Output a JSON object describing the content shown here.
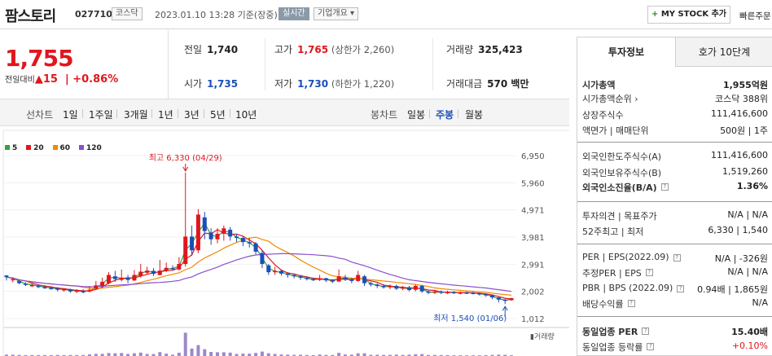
{
  "header": {
    "name": "팜스토리",
    "code": "027710",
    "market": "코스닥",
    "datetime": "2023.01.10 13:28 기준(장중)",
    "live": "실시간",
    "info": "기업개요",
    "info_arrow": "▾",
    "mystock": "MY STOCK 추가",
    "mystock_plus": "+",
    "quick": "빠른주문"
  },
  "price": {
    "current": "1,755",
    "change_label": "전일대비",
    "change_arrow": "▲",
    "change": "15",
    "change_pct": "+0.86%"
  },
  "stats": {
    "prev_label": "전일",
    "prev": "1,740",
    "high_label": "고가",
    "high": "1,765",
    "high_sub": "(상한가 2,260)",
    "volume_label": "거래량",
    "volume": "325,423",
    "open_label": "시가",
    "open": "1,735",
    "low_label": "저가",
    "low": "1,730",
    "low_sub": "(하한가 1,220)",
    "amount_label": "거래대금",
    "amount": "570 백만"
  },
  "selbar": {
    "line_label": "선차트",
    "line_items": [
      "1일",
      "1주일",
      "3개월",
      "1년",
      "3년",
      "5년",
      "10년"
    ],
    "candle_label": "봉차트",
    "candle_items": [
      "일봉",
      "주봉",
      "월봉"
    ],
    "candle_active": "주봉"
  },
  "chart_data": {
    "type": "line",
    "legend": [
      {
        "name": "5",
        "color": "#3aa03a"
      },
      {
        "name": "20",
        "color": "#e0161e"
      },
      {
        "name": "60",
        "color": "#f08a00"
      },
      {
        "name": "120",
        "color": "#8a4fd0"
      }
    ],
    "y_ticks": [
      "6,950",
      "5,960",
      "4,971",
      "3,981",
      "2,991",
      "2,002",
      "1,012"
    ],
    "ylim": [
      1012,
      6950
    ],
    "high_note": "최고 6,330 (04/29)",
    "low_note": "최저 1,540 (01/06)",
    "volume_label": "거래량",
    "up_color": "#e0161e",
    "down_color": "#1a4fb8",
    "candles": [
      [
        2580,
        2520,
        2600,
        2400
      ],
      [
        2420,
        2450,
        2520,
        2330
      ],
      [
        2380,
        2300,
        2420,
        2260
      ],
      [
        2280,
        2250,
        2330,
        2200
      ],
      [
        2220,
        2230,
        2300,
        2160
      ],
      [
        2200,
        2170,
        2260,
        2120
      ],
      [
        2160,
        2140,
        2230,
        2090
      ],
      [
        2130,
        2120,
        2190,
        2060
      ],
      [
        2120,
        2060,
        2160,
        2000
      ],
      [
        2040,
        2080,
        2120,
        1990
      ],
      [
        2060,
        2000,
        2100,
        1950
      ],
      [
        1990,
        2030,
        2080,
        1940
      ],
      [
        2010,
        1980,
        2080,
        1930
      ],
      [
        2000,
        2060,
        2200,
        1960
      ],
      [
        2100,
        2220,
        2380,
        2060
      ],
      [
        2200,
        2350,
        2500,
        2180
      ],
      [
        2300,
        2600,
        2700,
        2260
      ],
      [
        2550,
        2450,
        2750,
        2350
      ],
      [
        2420,
        2500,
        2800,
        2360
      ],
      [
        2500,
        2420,
        2600,
        2300
      ],
      [
        2400,
        2600,
        2780,
        2380
      ],
      [
        2560,
        2720,
        3000,
        2500
      ],
      [
        2680,
        2760,
        2900,
        2600
      ],
      [
        2750,
        2640,
        2850,
        2560
      ],
      [
        2600,
        2760,
        3150,
        2580
      ],
      [
        2760,
        2860,
        3050,
        2700
      ],
      [
        2850,
        2820,
        2950,
        2760
      ],
      [
        2800,
        3000,
        3250,
        2760
      ],
      [
        3000,
        4000,
        6330,
        2900
      ],
      [
        4000,
        3500,
        4400,
        3300
      ],
      [
        3500,
        4800,
        5000,
        3400
      ],
      [
        4700,
        4200,
        4900,
        3900
      ],
      [
        4150,
        3900,
        4300,
        3700
      ],
      [
        3900,
        4100,
        4300,
        3750
      ],
      [
        4100,
        4300,
        4400,
        3850
      ],
      [
        4250,
        4000,
        4350,
        3850
      ],
      [
        4000,
        3950,
        4100,
        3800
      ],
      [
        3950,
        3800,
        4000,
        3650
      ],
      [
        3800,
        3750,
        3950,
        3600
      ],
      [
        3750,
        3450,
        3800,
        3350
      ],
      [
        3400,
        3000,
        3500,
        2850
      ],
      [
        2950,
        2700,
        3000,
        2600
      ],
      [
        2700,
        2750,
        2900,
        2600
      ],
      [
        2750,
        2650,
        2800,
        2580
      ],
      [
        2650,
        2600,
        2700,
        2500
      ],
      [
        2600,
        2550,
        2650,
        2480
      ],
      [
        2550,
        2500,
        2600,
        2420
      ],
      [
        2500,
        2450,
        2550,
        2400
      ],
      [
        2450,
        2420,
        2500,
        2380
      ],
      [
        2420,
        2480,
        2600,
        2380
      ],
      [
        2480,
        2400,
        2500,
        2340
      ],
      [
        2400,
        2360,
        2450,
        2300
      ],
      [
        2360,
        2550,
        2800,
        2340
      ],
      [
        2500,
        2450,
        2600,
        2380
      ],
      [
        2450,
        2380,
        2500,
        2300
      ],
      [
        2380,
        2600,
        2750,
        2350
      ],
      [
        2550,
        2300,
        2600,
        2200
      ],
      [
        2300,
        2250,
        2350,
        2180
      ],
      [
        2250,
        2200,
        2300,
        2120
      ],
      [
        2200,
        2150,
        2260,
        2100
      ],
      [
        2150,
        2200,
        2250,
        2080
      ],
      [
        2200,
        2100,
        2250,
        2050
      ],
      [
        2100,
        2150,
        2200,
        2040
      ],
      [
        2150,
        2050,
        2200,
        2000
      ],
      [
        2060,
        2200,
        2260,
        2000
      ],
      [
        2200,
        2000,
        2240,
        1950
      ],
      [
        2000,
        1950,
        2050,
        1900
      ],
      [
        1950,
        2000,
        2060,
        1900
      ],
      [
        2000,
        1950,
        2040,
        1900
      ],
      [
        1950,
        1980,
        2030,
        1900
      ],
      [
        1980,
        1940,
        2010,
        1900
      ],
      [
        1940,
        1960,
        2000,
        1890
      ],
      [
        1960,
        1950,
        2000,
        1900
      ],
      [
        1950,
        1940,
        1990,
        1890
      ],
      [
        1930,
        1900,
        1960,
        1850
      ],
      [
        1900,
        1860,
        1920,
        1800
      ],
      [
        1860,
        1780,
        1880,
        1720
      ],
      [
        1780,
        1700,
        1800,
        1600
      ],
      [
        1700,
        1660,
        1720,
        1540
      ],
      [
        1680,
        1755,
        1765,
        1660
      ]
    ]
  },
  "right_panel": {
    "tab_active": "투자정보",
    "tab_other": "호가 10단계",
    "rows": [
      {
        "k": "시가총액",
        "v": "1,955억원",
        "kb": true,
        "vb": true
      },
      {
        "k": "시가총액순위 ›",
        "v": "코스닥 388위"
      },
      {
        "k": "상장주식수",
        "v": "111,416,600"
      },
      {
        "k": "액면가 | 매매단위",
        "v": "500원 | 1주"
      },
      {
        "k": "외국인한도주식수(A)",
        "v": "111,416,600"
      },
      {
        "k": "외국인보유주식수(B)",
        "v": "1,519,260"
      },
      {
        "k": "외국인소진율(B/A)",
        "v": "1.36%",
        "kb": true,
        "vb": true,
        "q": true
      },
      {
        "k": "투자의견 | 목표주가",
        "v": "N/A | N/A"
      },
      {
        "k": "52주최고 | 최저",
        "v": "6,330 | 1,540"
      },
      {
        "k": "PER | EPS(2022.09)",
        "v": "N/A | -326원",
        "q": true
      },
      {
        "k": "추정PER | EPS",
        "v": "N/A | N/A",
        "q": true
      },
      {
        "k": "PBR | BPS (2022.09)",
        "v": "0.94배 | 1,865원",
        "q": true
      },
      {
        "k": "배당수익률",
        "v": "N/A",
        "q": true
      },
      {
        "k": "동일업종 PER",
        "v": "15.40배",
        "kb": true,
        "vb": true,
        "q": true
      },
      {
        "k": "동일업종 등락률",
        "v": "+0.10%",
        "up": true,
        "q": true
      }
    ]
  }
}
